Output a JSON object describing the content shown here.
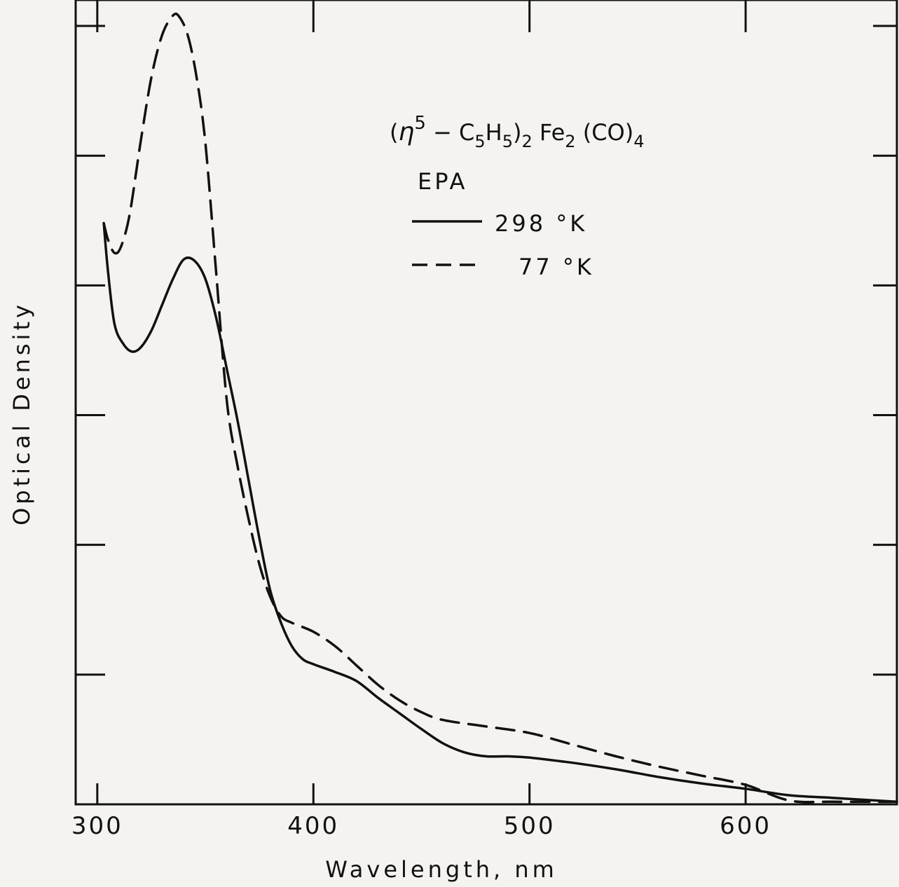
{
  "chart_data": {
    "type": "line",
    "title": "(η5 − C5H5)2 Fe2 (CO)4",
    "title_parts": {
      "open": "(",
      "eta": "η",
      "eta_sup": "5",
      "minus": " − C",
      "c_sub": "5",
      "h": "H",
      "h_sub": "5",
      "close": ")",
      "close_sub": "2",
      "fe": " Fe",
      "fe_sub": "2",
      "co": " (CO)",
      "co_sub": "4"
    },
    "subtitle": "EPA",
    "xlabel": "Wavelength, nm",
    "ylabel": "Optical Density",
    "xlim": [
      290,
      670
    ],
    "ylim": [
      0,
      6.2
    ],
    "x_ticks": [
      300,
      400,
      500,
      600
    ],
    "x_tick_labels": [
      "300",
      "400",
      "500",
      "600"
    ],
    "y_ticks": [
      1,
      2,
      3,
      4,
      5,
      6
    ],
    "y_tick_labels_shown": false,
    "grid": false,
    "legend_position": "top-right",
    "series": [
      {
        "name": "298 °K",
        "style": "solid",
        "color": "#111111",
        "x": [
          303,
          305,
          308,
          312,
          316,
          320,
          325,
          330,
          335,
          340,
          345,
          350,
          355,
          360,
          365,
          370,
          375,
          380,
          385,
          390,
          395,
          400,
          410,
          420,
          430,
          440,
          450,
          460,
          470,
          480,
          490,
          500,
          520,
          540,
          560,
          580,
          600,
          620,
          640,
          670
        ],
        "y": [
          4.48,
          4.1,
          3.7,
          3.55,
          3.49,
          3.52,
          3.65,
          3.85,
          4.05,
          4.2,
          4.19,
          4.05,
          3.75,
          3.35,
          2.95,
          2.5,
          2.05,
          1.65,
          1.4,
          1.22,
          1.12,
          1.08,
          1.02,
          0.95,
          0.82,
          0.7,
          0.58,
          0.47,
          0.4,
          0.37,
          0.37,
          0.36,
          0.32,
          0.27,
          0.21,
          0.16,
          0.12,
          0.07,
          0.05,
          0.02
        ]
      },
      {
        "name": "77 °K",
        "style": "dashed",
        "color": "#111111",
        "x": [
          303,
          305,
          308,
          311,
          315,
          320,
          325,
          330,
          335,
          338,
          342,
          346,
          350,
          355,
          360,
          365,
          370,
          375,
          380,
          385,
          390,
          400,
          410,
          420,
          430,
          440,
          450,
          460,
          480,
          500,
          520,
          540,
          560,
          580,
          600,
          620,
          640,
          670
        ],
        "y": [
          4.48,
          4.35,
          4.25,
          4.3,
          4.55,
          5.1,
          5.6,
          5.93,
          6.08,
          6.07,
          5.92,
          5.6,
          5.1,
          4.1,
          3.1,
          2.6,
          2.2,
          1.85,
          1.6,
          1.45,
          1.4,
          1.33,
          1.22,
          1.07,
          0.92,
          0.8,
          0.71,
          0.65,
          0.6,
          0.55,
          0.46,
          0.37,
          0.29,
          0.22,
          0.15,
          0.03,
          0.02,
          0.02
        ]
      }
    ]
  }
}
